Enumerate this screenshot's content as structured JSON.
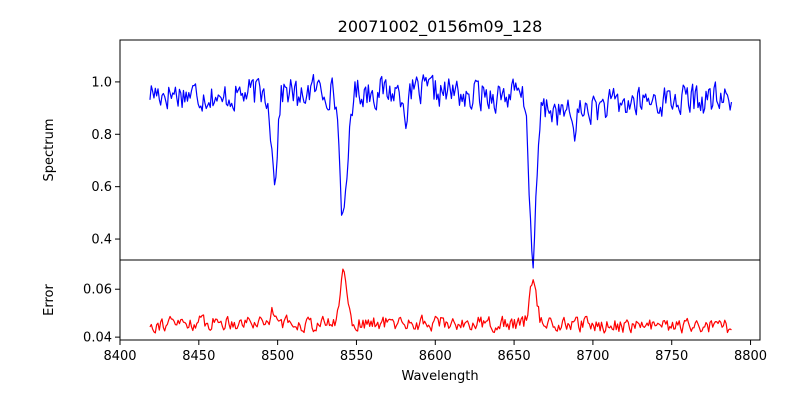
{
  "chart_data": [
    {
      "type": "line",
      "panel": "top",
      "title": "20071002_0156m09_128",
      "ylabel": "Spectrum",
      "xlabel": "",
      "xlim": [
        8400,
        8806
      ],
      "ylim": [
        0.32,
        1.16
      ],
      "yticks": [
        0.4,
        0.6,
        0.8,
        1.0
      ],
      "ytick_labels": [
        "0.4",
        "0.6",
        "0.8",
        "1.0"
      ],
      "grid": false,
      "series": [
        {
          "color": "#0000ff",
          "noise_amplitude": 0.055,
          "noise_seed": 17,
          "x_start": 8419,
          "x_end": 8788,
          "x_step": 0.85,
          "continuum": [
            {
              "x": 8419,
              "y": 0.96
            },
            {
              "x": 8470,
              "y": 0.95
            },
            {
              "x": 8520,
              "y": 0.97
            },
            {
              "x": 8600,
              "y": 0.96
            },
            {
              "x": 8650,
              "y": 0.95
            },
            {
              "x": 8680,
              "y": 0.88
            },
            {
              "x": 8700,
              "y": 0.9
            },
            {
              "x": 8740,
              "y": 0.93
            },
            {
              "x": 8788,
              "y": 0.93
            }
          ],
          "absorption_lines": [
            {
              "center": 8498,
              "depth": 0.32,
              "width": 1.8
            },
            {
              "center": 8542,
              "depth": 0.5,
              "width": 2.4
            },
            {
              "center": 8662,
              "depth": 0.58,
              "width": 2.2
            },
            {
              "center": 8464,
              "depth": 0.05,
              "width": 1.5
            },
            {
              "center": 8514,
              "depth": 0.06,
              "width": 1.5
            },
            {
              "center": 8582,
              "depth": 0.08,
              "width": 1.5
            },
            {
              "center": 8621,
              "depth": 0.05,
              "width": 1.5
            },
            {
              "center": 8688,
              "depth": 0.06,
              "width": 2
            }
          ]
        }
      ]
    },
    {
      "type": "line",
      "panel": "bottom",
      "title": "",
      "ylabel": "Error",
      "xlabel": "Wavelength",
      "xlim": [
        8400,
        8806
      ],
      "ylim": [
        0.0388,
        0.0722
      ],
      "xticks": [
        8400,
        8450,
        8500,
        8550,
        8600,
        8650,
        8700,
        8750,
        8800
      ],
      "xtick_labels": [
        "8400",
        "8450",
        "8500",
        "8550",
        "8600",
        "8650",
        "8700",
        "8750",
        "8800"
      ],
      "yticks": [
        0.04,
        0.06
      ],
      "ytick_labels": [
        "0.04",
        "0.06"
      ],
      "grid": false,
      "series": [
        {
          "color": "#ff0000",
          "noise_amplitude": 0.0028,
          "noise_seed": 91,
          "x_start": 8419,
          "x_end": 8788,
          "x_step": 0.85,
          "continuum": [
            {
              "x": 8419,
              "y": 0.0455
            },
            {
              "x": 8480,
              "y": 0.0465
            },
            {
              "x": 8520,
              "y": 0.0455
            },
            {
              "x": 8600,
              "y": 0.046
            },
            {
              "x": 8650,
              "y": 0.0455
            },
            {
              "x": 8700,
              "y": 0.045
            },
            {
              "x": 8788,
              "y": 0.044
            }
          ],
          "emission_lines": [
            {
              "center": 8498,
              "height": 0.006,
              "width": 2
            },
            {
              "center": 8542,
              "height": 0.022,
              "width": 2.2
            },
            {
              "center": 8662,
              "height": 0.02,
              "width": 2.2
            }
          ]
        }
      ]
    }
  ]
}
